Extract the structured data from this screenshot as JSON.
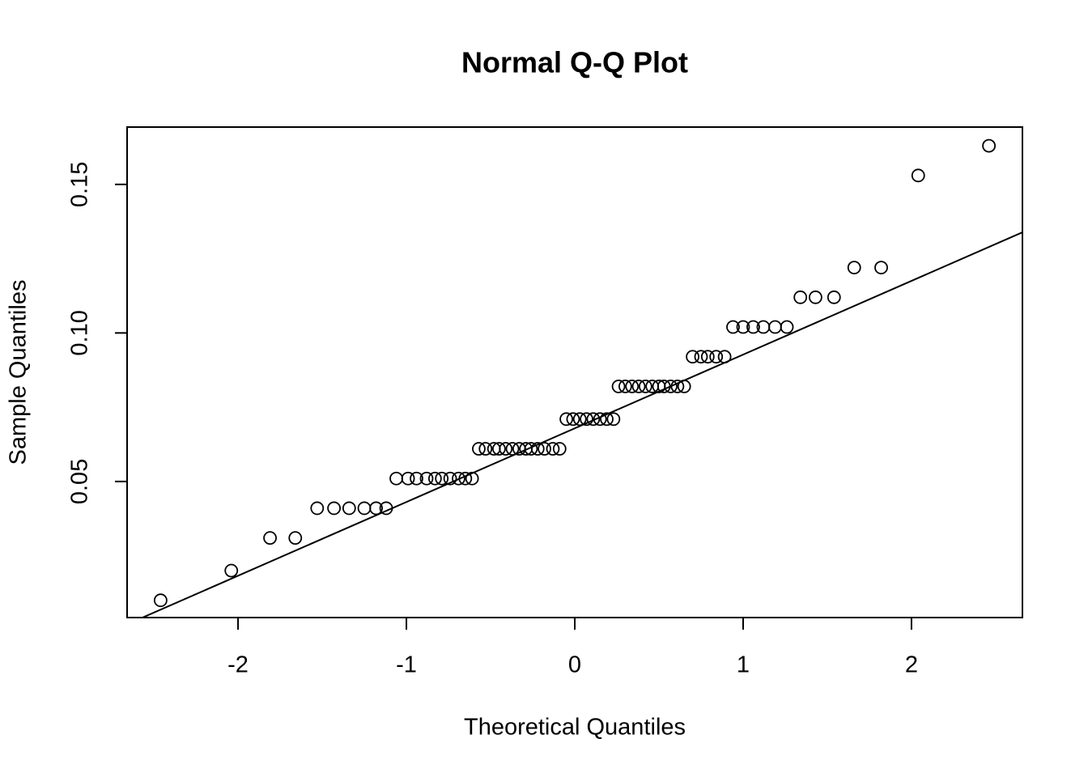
{
  "chart_data": {
    "type": "qq",
    "title": "Normal Q-Q Plot",
    "x_label": "Theoretical Quantiles",
    "y_label": "Sample Quantiles",
    "x": [
      -2.46,
      -2.04,
      -1.81,
      -1.66,
      -1.53,
      -1.43,
      -1.34,
      -1.25,
      -1.18,
      -1.12,
      -1.06,
      -0.99,
      -0.94,
      -0.88,
      -0.83,
      -0.79,
      -0.74,
      -0.69,
      -0.65,
      -0.61,
      -0.57,
      -0.53,
      -0.48,
      -0.45,
      -0.41,
      -0.37,
      -0.33,
      -0.29,
      -0.26,
      -0.22,
      -0.18,
      -0.13,
      -0.09,
      -0.05,
      -0.01,
      0.03,
      0.07,
      0.11,
      0.15,
      0.19,
      0.23,
      0.26,
      0.3,
      0.34,
      0.38,
      0.42,
      0.46,
      0.5,
      0.53,
      0.57,
      0.61,
      0.65,
      0.7,
      0.75,
      0.79,
      0.84,
      0.89,
      0.94,
      1.0,
      1.06,
      1.12,
      1.19,
      1.26,
      1.34,
      1.43,
      1.54,
      1.66,
      1.82,
      2.04,
      2.46
    ],
    "values": [
      0.01,
      0.02,
      0.031,
      0.031,
      0.041,
      0.041,
      0.041,
      0.041,
      0.041,
      0.041,
      0.051,
      0.051,
      0.051,
      0.051,
      0.051,
      0.051,
      0.051,
      0.051,
      0.051,
      0.051,
      0.061,
      0.061,
      0.061,
      0.061,
      0.061,
      0.061,
      0.061,
      0.061,
      0.061,
      0.061,
      0.061,
      0.061,
      0.061,
      0.071,
      0.071,
      0.071,
      0.071,
      0.071,
      0.071,
      0.071,
      0.071,
      0.082,
      0.082,
      0.082,
      0.082,
      0.082,
      0.082,
      0.082,
      0.082,
      0.082,
      0.082,
      0.082,
      0.092,
      0.092,
      0.092,
      0.092,
      0.092,
      0.102,
      0.102,
      0.102,
      0.102,
      0.102,
      0.102,
      0.112,
      0.112,
      0.112,
      0.122,
      0.122,
      0.153,
      0.163
    ],
    "color": "#000000",
    "reference_line": {
      "x": [
        -2.66,
        2.66
      ],
      "y": [
        0.0019,
        0.1339
      ]
    },
    "xlim": [
      -2.659,
      2.659
    ],
    "ylim": [
      0.0042,
      0.1693
    ],
    "xticks": [
      -2,
      -1,
      0,
      1,
      2
    ],
    "yticks": [
      0.05,
      {
        "value": 0.1,
        "label": "0.10"
      },
      0.15
    ]
  }
}
